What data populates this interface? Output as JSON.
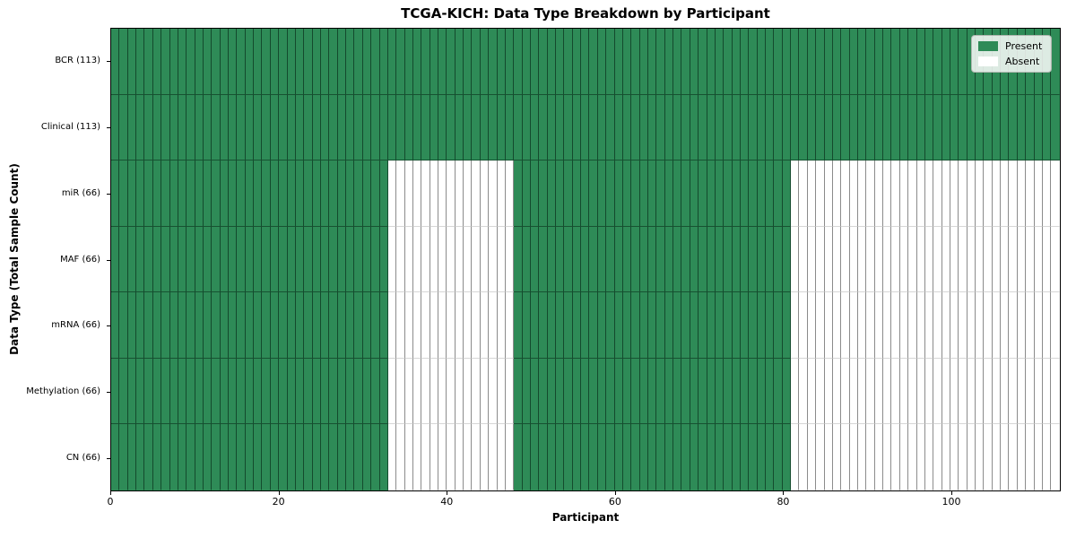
{
  "chart_data": {
    "type": "heatmap",
    "title": "TCGA-KICH: Data Type Breakdown by Participant",
    "xlabel": "Participant",
    "ylabel": "Data Type (Total Sample Count)",
    "n_participants": 113,
    "x_axis_range": [
      0,
      113
    ],
    "x_ticks": [
      0,
      20,
      40,
      60,
      80,
      100
    ],
    "colors": {
      "present": "#2e8b57",
      "absent": "#ffffff"
    },
    "legend": {
      "position": "upper right",
      "items": [
        {
          "label": "Present",
          "color": "#2e8b57"
        },
        {
          "label": "Absent",
          "color": "#ffffff"
        }
      ]
    },
    "rows": [
      {
        "label": "BCR (113)",
        "total_samples": 113,
        "present_ranges": [
          [
            0,
            113
          ]
        ]
      },
      {
        "label": "Clinical (113)",
        "total_samples": 113,
        "present_ranges": [
          [
            0,
            113
          ]
        ]
      },
      {
        "label": "miR (66)",
        "total_samples": 66,
        "present_ranges": [
          [
            0,
            33
          ],
          [
            48,
            81
          ]
        ]
      },
      {
        "label": "MAF (66)",
        "total_samples": 66,
        "present_ranges": [
          [
            0,
            33
          ],
          [
            48,
            81
          ]
        ]
      },
      {
        "label": "mRNA (66)",
        "total_samples": 66,
        "present_ranges": [
          [
            0,
            33
          ],
          [
            48,
            81
          ]
        ]
      },
      {
        "label": "Methylation (66)",
        "total_samples": 66,
        "present_ranges": [
          [
            0,
            33
          ],
          [
            48,
            81
          ]
        ]
      },
      {
        "label": "CN (66)",
        "total_samples": 66,
        "present_ranges": [
          [
            0,
            33
          ],
          [
            48,
            81
          ]
        ]
      }
    ]
  }
}
